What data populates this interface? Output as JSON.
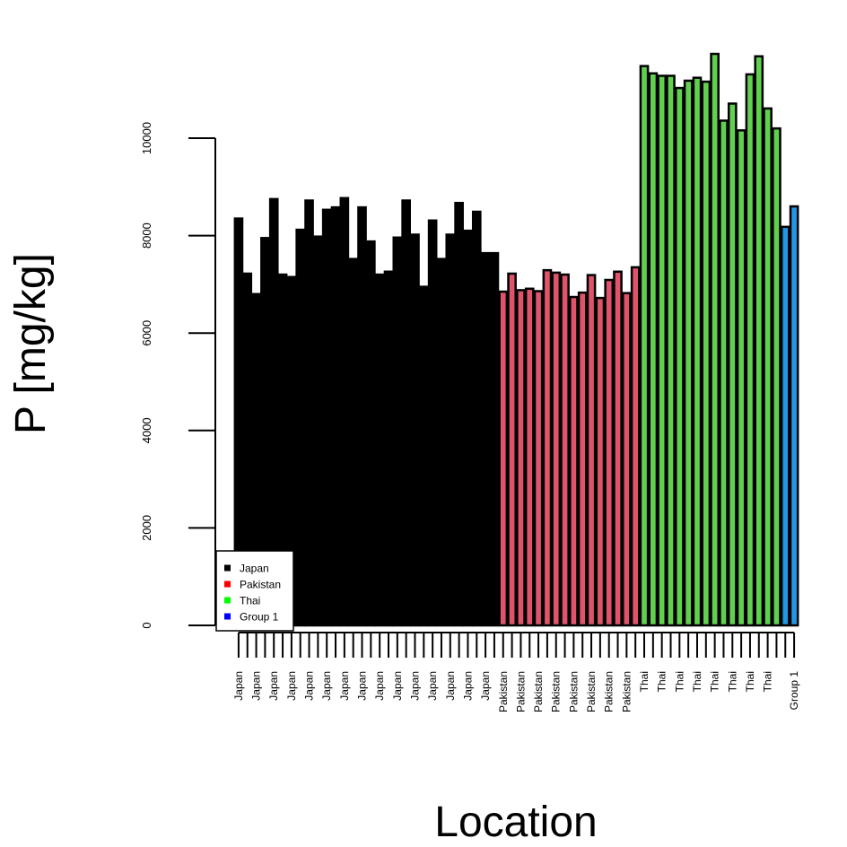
{
  "chart_data": {
    "type": "bar",
    "xlabel": "Location",
    "ylabel": "P [mg/kg]",
    "ylim": [
      0,
      12000
    ],
    "y_ticks": [
      0,
      2000,
      4000,
      6000,
      8000,
      10000
    ],
    "y_tick_labels": [
      "0",
      "2000",
      "4000",
      "6000",
      "8000",
      "10000"
    ],
    "grid": false,
    "legend_position": "bottom-left",
    "legend": [
      {
        "label": "Japan",
        "color": "#000000"
      },
      {
        "label": "Pakistan",
        "color": "#ff0000"
      },
      {
        "label": "Thai",
        "color": "#00ff00"
      },
      {
        "label": "Group 1",
        "color": "#0000ff"
      }
    ],
    "series_colors": {
      "Japan": "#000000",
      "Pakistan": "#df536b",
      "Thai": "#61d04f",
      "Group 1": "#2297e6"
    },
    "bars": [
      {
        "label": "Japan",
        "group": "Japan",
        "value": 8350
      },
      {
        "label": "",
        "group": "Japan",
        "value": 7220
      },
      {
        "label": "Japan",
        "group": "Japan",
        "value": 6800
      },
      {
        "label": "",
        "group": "Japan",
        "value": 7950
      },
      {
        "label": "Japan",
        "group": "Japan",
        "value": 8750
      },
      {
        "label": "",
        "group": "Japan",
        "value": 7200
      },
      {
        "label": "Japan",
        "group": "Japan",
        "value": 7150
      },
      {
        "label": "",
        "group": "Japan",
        "value": 8120
      },
      {
        "label": "Japan",
        "group": "Japan",
        "value": 8720
      },
      {
        "label": "",
        "group": "Japan",
        "value": 7980
      },
      {
        "label": "Japan",
        "group": "Japan",
        "value": 8530
      },
      {
        "label": "",
        "group": "Japan",
        "value": 8580
      },
      {
        "label": "Japan",
        "group": "Japan",
        "value": 8770
      },
      {
        "label": "",
        "group": "Japan",
        "value": 7520
      },
      {
        "label": "Japan",
        "group": "Japan",
        "value": 8580
      },
      {
        "label": "",
        "group": "Japan",
        "value": 7880
      },
      {
        "label": "Japan",
        "group": "Japan",
        "value": 7200
      },
      {
        "label": "",
        "group": "Japan",
        "value": 7260
      },
      {
        "label": "Japan",
        "group": "Japan",
        "value": 7960
      },
      {
        "label": "",
        "group": "Japan",
        "value": 8720
      },
      {
        "label": "Japan",
        "group": "Japan",
        "value": 8020
      },
      {
        "label": "",
        "group": "Japan",
        "value": 6950
      },
      {
        "label": "Japan",
        "group": "Japan",
        "value": 8310
      },
      {
        "label": "",
        "group": "Japan",
        "value": 7520
      },
      {
        "label": "Japan",
        "group": "Japan",
        "value": 8020
      },
      {
        "label": "",
        "group": "Japan",
        "value": 8670
      },
      {
        "label": "Japan",
        "group": "Japan",
        "value": 8100
      },
      {
        "label": "",
        "group": "Japan",
        "value": 8490
      },
      {
        "label": "Japan",
        "group": "Japan",
        "value": 7640
      },
      {
        "label": "",
        "group": "Japan",
        "value": 7640
      },
      {
        "label": "Pakistan",
        "group": "Pakistan",
        "value": 6850
      },
      {
        "label": "",
        "group": "Pakistan",
        "value": 7220
      },
      {
        "label": "Pakistan",
        "group": "Pakistan",
        "value": 6880
      },
      {
        "label": "",
        "group": "Pakistan",
        "value": 6910
      },
      {
        "label": "Pakistan",
        "group": "Pakistan",
        "value": 6860
      },
      {
        "label": "",
        "group": "Pakistan",
        "value": 7290
      },
      {
        "label": "Pakistan",
        "group": "Pakistan",
        "value": 7240
      },
      {
        "label": "",
        "group": "Pakistan",
        "value": 7200
      },
      {
        "label": "Pakistan",
        "group": "Pakistan",
        "value": 6740
      },
      {
        "label": "",
        "group": "Pakistan",
        "value": 6830
      },
      {
        "label": "Pakistan",
        "group": "Pakistan",
        "value": 7190
      },
      {
        "label": "",
        "group": "Pakistan",
        "value": 6720
      },
      {
        "label": "Pakistan",
        "group": "Pakistan",
        "value": 7090
      },
      {
        "label": "",
        "group": "Pakistan",
        "value": 7260
      },
      {
        "label": "Pakistan",
        "group": "Pakistan",
        "value": 6820
      },
      {
        "label": "",
        "group": "Pakistan",
        "value": 7350
      },
      {
        "label": "Thai",
        "group": "Thai",
        "value": 11480
      },
      {
        "label": "",
        "group": "Thai",
        "value": 11330
      },
      {
        "label": "Thai",
        "group": "Thai",
        "value": 11280
      },
      {
        "label": "",
        "group": "Thai",
        "value": 11280
      },
      {
        "label": "Thai",
        "group": "Thai",
        "value": 11030
      },
      {
        "label": "",
        "group": "Thai",
        "value": 11180
      },
      {
        "label": "Thai",
        "group": "Thai",
        "value": 11240
      },
      {
        "label": "",
        "group": "Thai",
        "value": 11160
      },
      {
        "label": "Thai",
        "group": "Thai",
        "value": 11730
      },
      {
        "label": "",
        "group": "Thai",
        "value": 10360
      },
      {
        "label": "Thai",
        "group": "Thai",
        "value": 10710
      },
      {
        "label": "",
        "group": "Thai",
        "value": 10160
      },
      {
        "label": "Thai",
        "group": "Thai",
        "value": 11310
      },
      {
        "label": "",
        "group": "Thai",
        "value": 11680
      },
      {
        "label": "Thai",
        "group": "Thai",
        "value": 10610
      },
      {
        "label": "",
        "group": "Thai",
        "value": 10200
      },
      {
        "label": "",
        "group": "Group 1",
        "value": 8180
      },
      {
        "label": "Group 1",
        "group": "Group 1",
        "value": 8600
      }
    ]
  }
}
